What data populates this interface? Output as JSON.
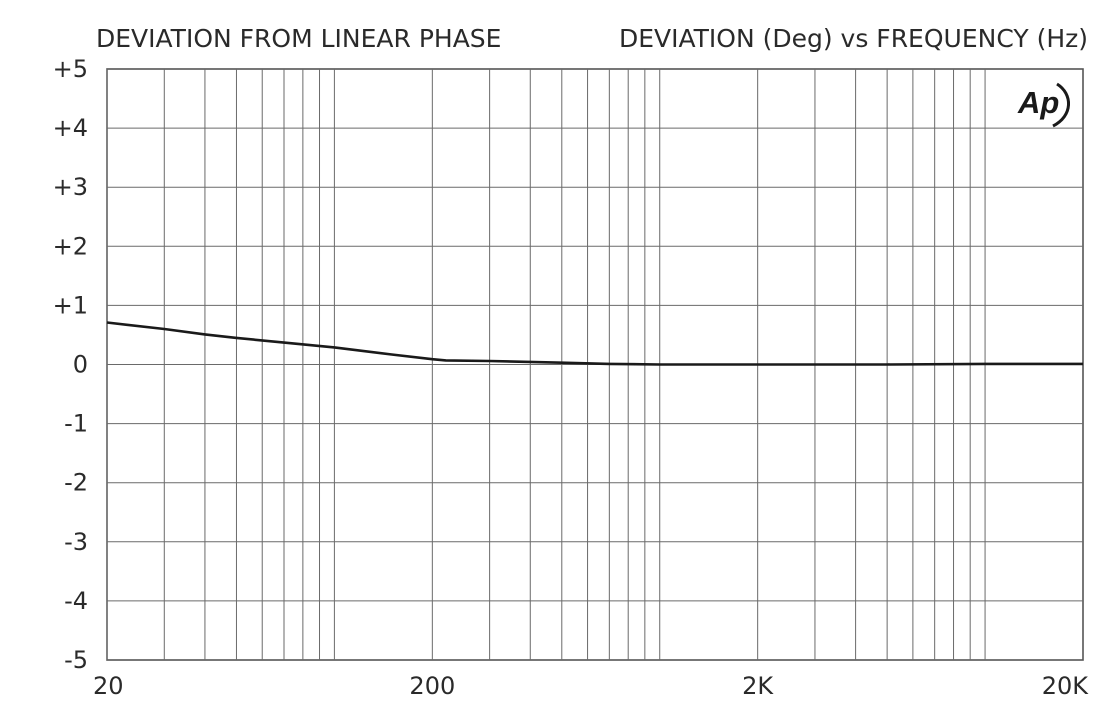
{
  "chart_data": {
    "type": "line",
    "title": "DEVIATION FROM LINEAR PHASE",
    "subtitle": "DEVIATION (Deg) vs FREQUENCY (Hz)",
    "x_scale": "log",
    "xlim": [
      20,
      20000
    ],
    "ylim": [
      -5,
      5
    ],
    "grid": true,
    "x_tick_labels": [
      {
        "value": 20,
        "label": "20"
      },
      {
        "value": 200,
        "label": "200"
      },
      {
        "value": 2000,
        "label": "2K"
      },
      {
        "value": 20000,
        "label": "20K"
      }
    ],
    "y_tick_labels": [
      {
        "value": 5,
        "label": "+5"
      },
      {
        "value": 4,
        "label": "+4"
      },
      {
        "value": 3,
        "label": "+3"
      },
      {
        "value": 2,
        "label": "+2"
      },
      {
        "value": 1,
        "label": "+1"
      },
      {
        "value": 0,
        "label": "0"
      },
      {
        "value": -1,
        "label": "-1"
      },
      {
        "value": -2,
        "label": "-2"
      },
      {
        "value": -3,
        "label": "-3"
      },
      {
        "value": -4,
        "label": "-4"
      },
      {
        "value": -5,
        "label": "-5"
      }
    ],
    "series": [
      {
        "x": [
          20,
          30,
          40,
          50,
          70,
          100,
          150,
          200,
          220,
          300,
          500,
          700,
          1000,
          1500,
          2000,
          5000,
          10000,
          20000
        ],
        "values": [
          0.71,
          0.6,
          0.51,
          0.45,
          0.37,
          0.29,
          0.17,
          0.09,
          0.07,
          0.06,
          0.03,
          0.01,
          0.0,
          0.0,
          0.0,
          0.0,
          0.01,
          0.01
        ],
        "color": "#1a1a1a"
      }
    ]
  },
  "logo": {
    "text": "Ap"
  }
}
